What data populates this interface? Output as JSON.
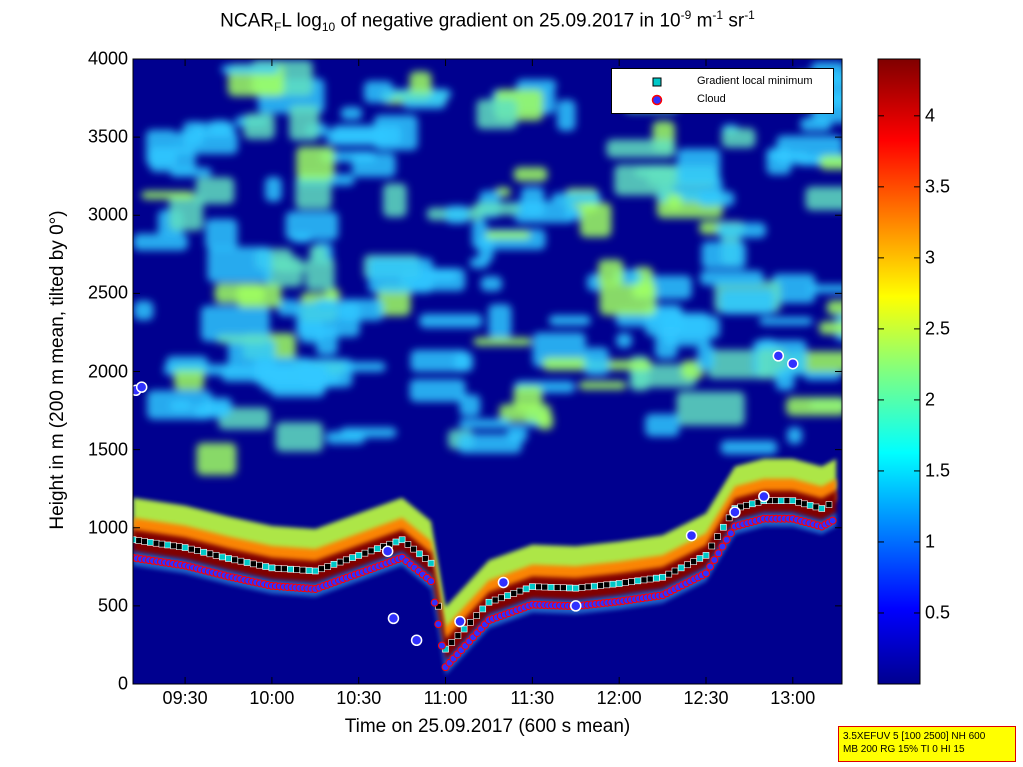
{
  "title": {
    "prefix": "NCAR",
    "prefix_sub": "F",
    "mid": "L log",
    "log_sub": "10",
    "rest": " of negative gradient on 25.09.2017 in 10",
    "exp1": "-9",
    "unit_m": " m",
    "exp2": "-1",
    "unit_sr": " sr",
    "exp3": "-1"
  },
  "xlabel": "Time on 25.09.2017 (600 s mean)",
  "ylabel": "Height in m (200 m mean, tilted by 0°)",
  "yticks": [
    "0",
    "500",
    "1000",
    "1500",
    "2000",
    "2500",
    "3000",
    "3500",
    "4000"
  ],
  "xticks": [
    "09:30",
    "10:00",
    "10:30",
    "11:00",
    "11:30",
    "12:00",
    "12:30",
    "13:00"
  ],
  "colorbar_ticks": [
    "0.5",
    "1",
    "1.5",
    "2",
    "2.5",
    "3",
    "3.5",
    "4"
  ],
  "legend": {
    "items": [
      {
        "label": "Gradient local minimum",
        "marker": "square",
        "color": "#00c8c8"
      },
      {
        "label": "Cloud",
        "marker": "circle",
        "color": "#c00000"
      }
    ]
  },
  "info_box": {
    "line1": "3.5XEFUV 5 [100 2500] NH 600",
    "line2": "MB 200 RG 15% TI 0 HI 15"
  },
  "colors": {
    "background": "#00008f",
    "cloud_layer": "#800000",
    "bl_top": "#ff8000",
    "weak": "#40c0ff",
    "mid": "#c0ff40",
    "marker_fill": "#00c8c8",
    "cloud_marker": "#3030ff",
    "cloud_marker_edge": "#ff0000"
  },
  "chart_data": {
    "type": "heatmap",
    "x_unit": "time (HH:MM)",
    "y_unit": "m",
    "xlim": [
      "09:12",
      "13:17"
    ],
    "ylim": [
      0,
      4000
    ],
    "clim": [
      0,
      4.4
    ],
    "colormap": "jet",
    "boundary_layer_top": {
      "time": [
        "09:12",
        "09:30",
        "09:45",
        "10:00",
        "10:15",
        "10:30",
        "10:45",
        "10:55",
        "11:00",
        "11:15",
        "11:30",
        "11:45",
        "12:00",
        "12:15",
        "12:30",
        "12:40",
        "12:50",
        "13:00",
        "13:10",
        "13:15"
      ],
      "height": [
        1000,
        950,
        880,
        820,
        800,
        900,
        1000,
        850,
        300,
        600,
        700,
        690,
        720,
        760,
        900,
        1200,
        1250,
        1250,
        1200,
        1250
      ]
    },
    "clouds": {
      "time": [
        "09:13",
        "09:15",
        "10:40",
        "10:42",
        "10:50",
        "11:05",
        "11:20",
        "11:45",
        "12:25",
        "12:40",
        "12:50",
        "12:55",
        "13:00"
      ],
      "height": [
        1880,
        1900,
        850,
        420,
        280,
        400,
        650,
        500,
        950,
        1100,
        1200,
        2100,
        2050
      ]
    }
  }
}
